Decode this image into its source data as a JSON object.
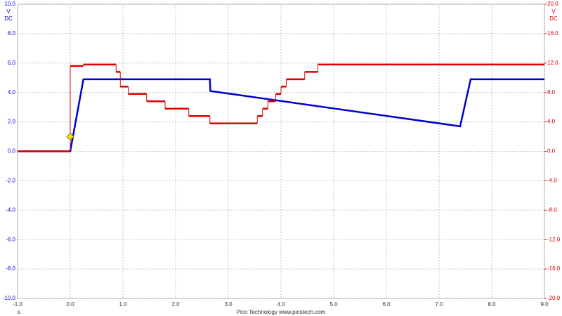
{
  "chart_data": {
    "type": "line",
    "xlabel": "s",
    "ylabel": "V",
    "ylabel_sub": "DC",
    "y2label": "V",
    "y2label_sub": "DC",
    "footer": "Pico Technology   www.picotech.com",
    "xlim": [
      -1,
      9
    ],
    "xticks": [
      {
        "value": -1,
        "label": "-1.0"
      },
      {
        "value": 0,
        "label": "0.0"
      },
      {
        "value": 1,
        "label": "1.0"
      },
      {
        "value": 2,
        "label": "2.0"
      },
      {
        "value": 3,
        "label": "3.0"
      },
      {
        "value": 4,
        "label": "4.0"
      },
      {
        "value": 5,
        "label": "5.0"
      },
      {
        "value": 6,
        "label": "6.0"
      },
      {
        "value": 7,
        "label": "7.0"
      },
      {
        "value": 8,
        "label": "8.0"
      },
      {
        "value": 9,
        "label": "9.0"
      }
    ],
    "ylim": [
      -10,
      10
    ],
    "yticks": [
      {
        "value": -10,
        "label": "-10.0"
      },
      {
        "value": -8,
        "label": "-8.0"
      },
      {
        "value": -6,
        "label": "-6.0"
      },
      {
        "value": -4,
        "label": "-4.0"
      },
      {
        "value": -2,
        "label": "-2.0"
      },
      {
        "value": 0,
        "label": "0.0"
      },
      {
        "value": 2,
        "label": "2.0"
      },
      {
        "value": 4,
        "label": "4.0"
      },
      {
        "value": 6,
        "label": "6.0"
      },
      {
        "value": 8,
        "label": "8.0"
      },
      {
        "value": 10,
        "label": "10.0"
      }
    ],
    "y2lim": [
      -20,
      20
    ],
    "y2ticks": [
      {
        "value": -20,
        "label": "-20.0"
      },
      {
        "value": -16,
        "label": "-16.0"
      },
      {
        "value": -12,
        "label": "-12.0"
      },
      {
        "value": -8,
        "label": "-8.0"
      },
      {
        "value": -4,
        "label": "-4.0"
      },
      {
        "value": 0,
        "label": "0.0"
      },
      {
        "value": 4,
        "label": "4.0"
      },
      {
        "value": 8,
        "label": "8.0"
      },
      {
        "value": 12,
        "label": "12.0"
      },
      {
        "value": 16,
        "label": "16.0"
      },
      {
        "value": 20,
        "label": "20.0"
      }
    ],
    "grid": true,
    "series": [
      {
        "color": "#0000cc",
        "x": [
          -1,
          0,
          0.25,
          2.65,
          2.66,
          7.4,
          7.6,
          9
        ],
        "values": [
          0,
          0,
          4.9,
          4.9,
          4.1,
          1.7,
          4.9,
          4.9
        ]
      },
      {
        "color": "#dd0000",
        "axis": "y2",
        "step": "post",
        "x": [
          -1,
          0,
          0.25,
          0.87,
          0.95,
          1.1,
          1.45,
          1.8,
          2.25,
          2.65,
          3.55,
          3.65,
          3.75,
          3.9,
          4.0,
          4.1,
          4.45,
          4.7,
          9
        ],
        "values": [
          0,
          11.6,
          11.8,
          10.8,
          8.8,
          7.8,
          6.8,
          5.8,
          4.8,
          3.8,
          4.8,
          5.8,
          6.8,
          7.8,
          8.8,
          9.8,
          10.8,
          11.8,
          11.8
        ]
      }
    ],
    "trigger": {
      "x": 0,
      "y": 1,
      "color": "#f5e000"
    }
  }
}
